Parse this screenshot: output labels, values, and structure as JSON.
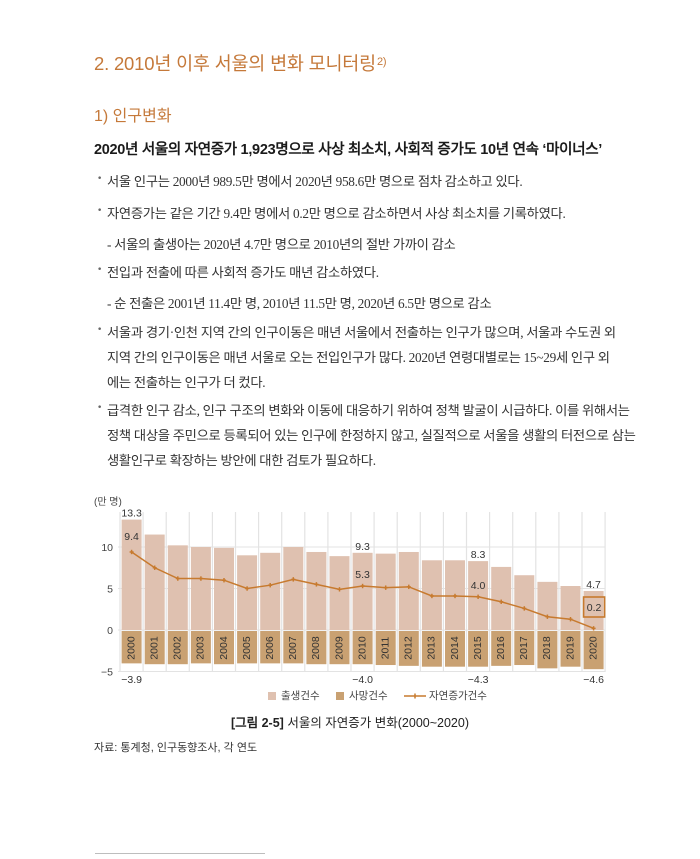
{
  "section": {
    "number_title": "2. 2010년 이후 서울의 변화 모니터링",
    "footnote_mark": "2)",
    "subsection_title": "1) 인구변화",
    "lead": "2020년 서울의 자연증가 1,923명으로 사상 최소치, 사회적 증가도 10년 연속 ‘마이너스’"
  },
  "paragraphs": [
    {
      "type": "bullet",
      "lines": [
        "서울 인구는 2000년 989.5만 명에서 2020년 958.6만 명으로 점차 감소하고 있다."
      ]
    },
    {
      "type": "bullet",
      "lines": [
        "자연증가는 같은 기간 9.4만 명에서 0.2만 명으로 감소하면서 사상 최소치를 기록하였다."
      ]
    },
    {
      "type": "dash",
      "lines": [
        "- 서울의 출생아는 2020년 4.7만 명으로 2010년의 절반 가까이 감소"
      ]
    },
    {
      "type": "bullet",
      "lines": [
        "전입과 전출에 따른 사회적 증가도 매년 감소하였다."
      ]
    },
    {
      "type": "dash",
      "lines": [
        "- 순 전출은 2001년 11.4만 명, 2010년 11.5만 명, 2020년 6.5만 명으로 감소"
      ]
    },
    {
      "type": "bullet",
      "lines": [
        "서울과 경기·인천 지역 간의 인구이동은 매년 서울에서 전출하는 인구가 많으며, 서울과 수도권 외",
        "지역 간의 인구이동은 매년 서울로 오는 전입인구가 많다. 2020년 연령대별로는 15~29세 인구 외",
        "에는 전출하는 인구가 더 컸다."
      ]
    },
    {
      "type": "bullet",
      "lines": [
        "급격한 인구 감소, 인구 구조의 변화와 이동에 대응하기 위하여 정책 발굴이 시급하다. 이를 위해서는",
        "정책 대상을 주민으로 등록되어 있는 인구에 한정하지 않고, 실질적으로 서울을 생활의 터전으로 삼는",
        "생활인구로 확장하는 방안에 대한 검토가 필요하다."
      ]
    }
  ],
  "bullet_glyph": "•",
  "figure": {
    "caption_label": "[그림 2-5]",
    "caption_text": " 서울의 자연증가 변화(2000~2020)",
    "source": "자료: 통계청, 인구동향조사, 각 연도"
  },
  "colors": {
    "heading": "#c5793a",
    "births": "#dfc1b0",
    "deaths": "#c9a172",
    "line": "#c77a2e",
    "grid": "#e3e3e3",
    "highlight_box": "#c77a2e"
  },
  "chart_data": {
    "type": "bar",
    "title": "서울의 자연증가 변화(2000~2020)",
    "ylabel": "(만 명)",
    "xlabel": "",
    "ylim": [
      -5,
      14
    ],
    "yticks": [
      10,
      5,
      0,
      -5
    ],
    "grid": true,
    "legend_position": "bottom",
    "categories": [
      "2000",
      "2001",
      "2002",
      "2003",
      "2004",
      "2005",
      "2006",
      "2007",
      "2008",
      "2009",
      "2010",
      "2011",
      "2012",
      "2013",
      "2014",
      "2015",
      "2016",
      "2017",
      "2018",
      "2019",
      "2020"
    ],
    "series": [
      {
        "name": "출생건수",
        "kind": "bar",
        "values": [
          13.3,
          11.5,
          10.2,
          10.0,
          9.9,
          9.0,
          9.3,
          10.0,
          9.4,
          8.9,
          9.3,
          9.2,
          9.4,
          8.4,
          8.4,
          8.3,
          7.6,
          6.6,
          5.8,
          5.3,
          4.7
        ]
      },
      {
        "name": "사망건수",
        "kind": "bar",
        "values": [
          -3.9,
          -4.0,
          -4.0,
          -3.9,
          -4.0,
          -3.9,
          -3.9,
          -3.9,
          -4.0,
          -4.0,
          -4.0,
          -4.1,
          -4.2,
          -4.3,
          -4.3,
          -4.3,
          -4.2,
          -4.1,
          -4.5,
          -4.3,
          -4.6
        ]
      },
      {
        "name": "자연증가건수",
        "kind": "line",
        "values": [
          9.4,
          7.5,
          6.2,
          6.2,
          6.0,
          5.0,
          5.4,
          6.1,
          5.5,
          4.9,
          5.3,
          5.1,
          5.2,
          4.1,
          4.1,
          4.0,
          3.4,
          2.6,
          1.6,
          1.3,
          0.2
        ]
      }
    ],
    "annotations": {
      "births_labels": [
        {
          "year": "2000",
          "text": "13.3"
        },
        {
          "year": "2010",
          "text": "9.3"
        },
        {
          "year": "2015",
          "text": "8.3"
        },
        {
          "year": "2020",
          "text": "4.7"
        }
      ],
      "line_labels": [
        {
          "year": "2000",
          "text": "9.4"
        },
        {
          "year": "2010",
          "text": "5.3"
        },
        {
          "year": "2015",
          "text": "4.0"
        },
        {
          "year": "2020",
          "text": "0.2",
          "boxed": true
        }
      ],
      "deaths_labels": [
        {
          "year": "2000",
          "text": "−3.9"
        },
        {
          "year": "2010",
          "text": "−4.0"
        },
        {
          "year": "2015",
          "text": "−4.3"
        },
        {
          "year": "2020",
          "text": "−4.6"
        }
      ]
    },
    "ytick_labels": [
      "10",
      "5",
      "0",
      "−5"
    ]
  }
}
